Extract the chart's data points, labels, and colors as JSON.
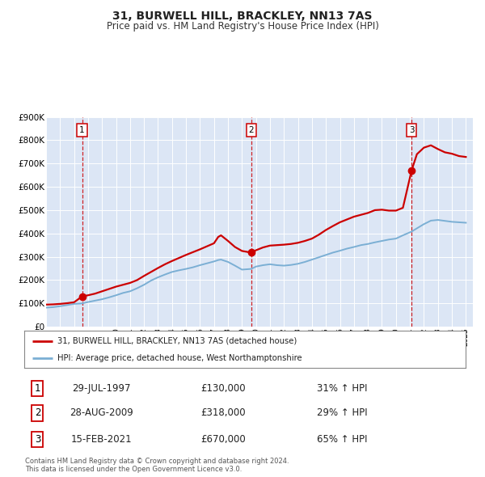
{
  "title": "31, BURWELL HILL, BRACKLEY, NN13 7AS",
  "subtitle": "Price paid vs. HM Land Registry's House Price Index (HPI)",
  "legend_line1": "31, BURWELL HILL, BRACKLEY, NN13 7AS (detached house)",
  "legend_line2": "HPI: Average price, detached house, West Northamptonshire",
  "footer1": "Contains HM Land Registry data © Crown copyright and database right 2024.",
  "footer2": "This data is licensed under the Open Government Licence v3.0.",
  "price_color": "#cc0000",
  "hpi_color": "#7bafd4",
  "plot_bg": "#dce6f5",
  "grid_color": "#ffffff",
  "ylim": [
    0,
    900000
  ],
  "yticks": [
    0,
    100000,
    200000,
    300000,
    400000,
    500000,
    600000,
    700000,
    800000,
    900000
  ],
  "ytick_labels": [
    "£0",
    "£100K",
    "£200K",
    "£300K",
    "£400K",
    "£500K",
    "£600K",
    "£700K",
    "£800K",
    "£900K"
  ],
  "transaction_years": [
    1997.575,
    2009.66,
    2021.12
  ],
  "transaction_prices": [
    130000,
    318000,
    670000
  ],
  "transaction_labels": [
    "1",
    "2",
    "3"
  ],
  "table_rows": [
    {
      "num": "1",
      "date": "29-JUL-1997",
      "price": "£130,000",
      "pct": "31% ↑ HPI"
    },
    {
      "num": "2",
      "date": "28-AUG-2009",
      "price": "£318,000",
      "pct": "29% ↑ HPI"
    },
    {
      "num": "3",
      "date": "15-FEB-2021",
      "price": "£670,000",
      "pct": "65% ↑ HPI"
    }
  ],
  "price_line_data": [
    [
      1995.0,
      95000
    ],
    [
      1995.5,
      96000
    ],
    [
      1996.0,
      98000
    ],
    [
      1996.5,
      101000
    ],
    [
      1997.0,
      105000
    ],
    [
      1997.575,
      130000
    ],
    [
      1998.0,
      135000
    ],
    [
      1998.5,
      142000
    ],
    [
      1999.0,
      152000
    ],
    [
      1999.5,
      162000
    ],
    [
      2000.0,
      172000
    ],
    [
      2000.5,
      180000
    ],
    [
      2001.0,
      188000
    ],
    [
      2001.5,
      200000
    ],
    [
      2002.0,
      218000
    ],
    [
      2002.5,
      235000
    ],
    [
      2003.0,
      252000
    ],
    [
      2003.5,
      268000
    ],
    [
      2004.0,
      282000
    ],
    [
      2004.5,
      295000
    ],
    [
      2005.0,
      308000
    ],
    [
      2005.5,
      320000
    ],
    [
      2006.0,
      332000
    ],
    [
      2006.5,
      345000
    ],
    [
      2007.0,
      358000
    ],
    [
      2007.3,
      385000
    ],
    [
      2007.5,
      392000
    ],
    [
      2008.0,
      368000
    ],
    [
      2008.5,
      342000
    ],
    [
      2009.0,
      325000
    ],
    [
      2009.66,
      318000
    ],
    [
      2010.0,
      328000
    ],
    [
      2010.5,
      340000
    ],
    [
      2011.0,
      348000
    ],
    [
      2011.5,
      350000
    ],
    [
      2012.0,
      352000
    ],
    [
      2012.5,
      355000
    ],
    [
      2013.0,
      360000
    ],
    [
      2013.5,
      368000
    ],
    [
      2014.0,
      378000
    ],
    [
      2014.5,
      395000
    ],
    [
      2015.0,
      415000
    ],
    [
      2015.5,
      432000
    ],
    [
      2016.0,
      448000
    ],
    [
      2016.5,
      460000
    ],
    [
      2017.0,
      472000
    ],
    [
      2017.5,
      480000
    ],
    [
      2018.0,
      488000
    ],
    [
      2018.5,
      500000
    ],
    [
      2019.0,
      502000
    ],
    [
      2019.5,
      498000
    ],
    [
      2020.0,
      498000
    ],
    [
      2020.5,
      510000
    ],
    [
      2021.12,
      670000
    ],
    [
      2021.5,
      740000
    ],
    [
      2022.0,
      768000
    ],
    [
      2022.5,
      778000
    ],
    [
      2023.0,
      762000
    ],
    [
      2023.5,
      748000
    ],
    [
      2024.0,
      742000
    ],
    [
      2024.5,
      732000
    ],
    [
      2025.0,
      728000
    ]
  ],
  "hpi_line_data": [
    [
      1995.0,
      82000
    ],
    [
      1995.5,
      84000
    ],
    [
      1996.0,
      88000
    ],
    [
      1996.5,
      93000
    ],
    [
      1997.0,
      98000
    ],
    [
      1997.575,
      100000
    ],
    [
      1998.0,
      106000
    ],
    [
      1998.5,
      112000
    ],
    [
      1999.0,
      118000
    ],
    [
      1999.5,
      126000
    ],
    [
      2000.0,
      135000
    ],
    [
      2000.5,
      145000
    ],
    [
      2001.0,
      152000
    ],
    [
      2001.5,
      165000
    ],
    [
      2002.0,
      180000
    ],
    [
      2002.5,
      198000
    ],
    [
      2003.0,
      212000
    ],
    [
      2003.5,
      224000
    ],
    [
      2004.0,
      235000
    ],
    [
      2004.5,
      242000
    ],
    [
      2005.0,
      248000
    ],
    [
      2005.5,
      255000
    ],
    [
      2006.0,
      264000
    ],
    [
      2006.5,
      272000
    ],
    [
      2007.0,
      280000
    ],
    [
      2007.3,
      286000
    ],
    [
      2007.5,
      288000
    ],
    [
      2008.0,
      278000
    ],
    [
      2008.5,
      262000
    ],
    [
      2009.0,
      245000
    ],
    [
      2009.66,
      248000
    ],
    [
      2010.0,
      258000
    ],
    [
      2010.5,
      264000
    ],
    [
      2011.0,
      268000
    ],
    [
      2011.5,
      264000
    ],
    [
      2012.0,
      262000
    ],
    [
      2012.5,
      265000
    ],
    [
      2013.0,
      270000
    ],
    [
      2013.5,
      278000
    ],
    [
      2014.0,
      288000
    ],
    [
      2014.5,
      298000
    ],
    [
      2015.0,
      308000
    ],
    [
      2015.5,
      318000
    ],
    [
      2016.0,
      326000
    ],
    [
      2016.5,
      335000
    ],
    [
      2017.0,
      342000
    ],
    [
      2017.5,
      350000
    ],
    [
      2018.0,
      355000
    ],
    [
      2018.5,
      362000
    ],
    [
      2019.0,
      368000
    ],
    [
      2019.5,
      374000
    ],
    [
      2020.0,
      378000
    ],
    [
      2020.5,
      392000
    ],
    [
      2021.12,
      408000
    ],
    [
      2021.5,
      422000
    ],
    [
      2022.0,
      440000
    ],
    [
      2022.5,
      455000
    ],
    [
      2023.0,
      458000
    ],
    [
      2023.5,
      454000
    ],
    [
      2024.0,
      450000
    ],
    [
      2024.5,
      448000
    ],
    [
      2025.0,
      446000
    ]
  ]
}
